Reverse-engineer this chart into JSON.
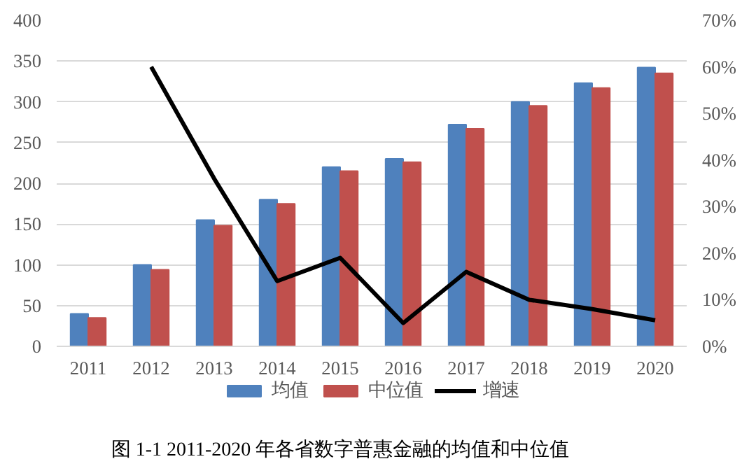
{
  "chart_data": {
    "type": "bar",
    "categories": [
      "2011",
      "2012",
      "2013",
      "2014",
      "2015",
      "2016",
      "2017",
      "2018",
      "2019",
      "2020"
    ],
    "series": [
      {
        "name": "均值",
        "color": "#4f81bd",
        "values": [
          40,
          100,
          155,
          180,
          220,
          230,
          272,
          300,
          323,
          342
        ]
      },
      {
        "name": "中位值",
        "color": "#c0504d",
        "values": [
          35,
          94,
          148,
          175,
          215,
          226,
          267,
          295,
          317,
          335
        ]
      },
      {
        "name": "增速",
        "type": "line",
        "axis": "y2",
        "color": "#000000",
        "values": [
          null,
          0.6,
          0.36,
          0.14,
          0.19,
          0.05,
          0.16,
          0.1,
          0.08,
          0.056
        ]
      }
    ],
    "ylim": [
      0,
      400
    ],
    "yticks": [
      0,
      50,
      100,
      150,
      200,
      250,
      300,
      350,
      400
    ],
    "y2lim": [
      0,
      0.7
    ],
    "y2ticks": [
      {
        "value": 0,
        "label": "0%"
      },
      {
        "value": 0.1,
        "label": "10%"
      },
      {
        "value": 0.2,
        "label": "20%"
      },
      {
        "value": 0.3,
        "label": "30%"
      },
      {
        "value": 0.4,
        "label": "40%"
      },
      {
        "value": 0.5,
        "label": "50%"
      },
      {
        "value": 0.6,
        "label": "60%"
      },
      {
        "value": 0.7,
        "label": "70%"
      }
    ],
    "grid": "y",
    "legend": "bottom",
    "annotations": [
      "图 1-1 2011-2020 年各省数字普惠金融的均值和中位值"
    ]
  }
}
